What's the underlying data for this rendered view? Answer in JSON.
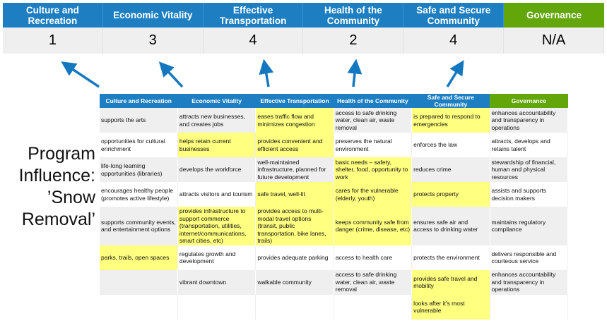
{
  "banner": {
    "categories": [
      {
        "label": "Culture and Recreation",
        "score": "1"
      },
      {
        "label": "Economic Vitality",
        "score": "3"
      },
      {
        "label": "Effective Transportation",
        "score": "4"
      },
      {
        "label": "Health of the Community",
        "score": "2"
      },
      {
        "label": "Safe and Secure Community",
        "score": "4"
      },
      {
        "label": "Governance",
        "score": "N/A"
      }
    ]
  },
  "side_label": "Program Influence: ’Snow Removal’",
  "colors": {
    "header_blue": "#1d7fc2",
    "governance_green": "#62a60a",
    "highlight_yellow": "#ffff80",
    "row_grey": "#efefef",
    "arrow_blue": "#1478c0"
  },
  "table": {
    "headers": [
      "Culture and Recreation",
      "Economic Vitality",
      "Effective Transportation",
      "Health of the Community",
      "Safe and Secure Community",
      "Governance"
    ],
    "rows": [
      [
        {
          "t": "supports the arts"
        },
        {
          "t": "attracts new businesses, and creates jobs"
        },
        {
          "t": "eases traffic flow and minimizes congestion",
          "hl": true
        },
        {
          "t": "access to safe drinking water, clean air, waste removal"
        },
        {
          "t": "is prepared to respond to emergencies",
          "hl": true
        },
        {
          "t": "enhances accountability and transparency in operations"
        }
      ],
      [
        {
          "t": "opportunities for cultural enrichment"
        },
        {
          "t": "helps retain current businesses",
          "hl": true
        },
        {
          "t": "provides convenient and efficient access",
          "hl": true
        },
        {
          "t": "preserves the natural environment"
        },
        {
          "t": "enforces the law"
        },
        {
          "t": "attracts, develops and retains talent"
        }
      ],
      [
        {
          "t": "life-long learning opportunities (libraries)"
        },
        {
          "t": "develops the workforce"
        },
        {
          "t": "well-maintained infrastructure, planned for future development"
        },
        {
          "t": "basic needs – safety, shelter, food, opportunity to work",
          "hl": true
        },
        {
          "t": "reduces crime"
        },
        {
          "t": "stewardship of financial, human and physical resources"
        }
      ],
      [
        {
          "t": "encourages healthy people (promotes active lifestyle)"
        },
        {
          "t": "attracts visitors and tourism"
        },
        {
          "t": "safe travel, well-lit",
          "hl": true
        },
        {
          "t": "cares for the vulnerable (elderly, youth)",
          "hl": true
        },
        {
          "t": "protects property",
          "hl": true
        },
        {
          "t": "assists and supports decision makers"
        }
      ],
      [
        {
          "t": "supports community events, and entertainment options"
        },
        {
          "t": "provides infrastructure to support commerce (transportation, utilities, internet/communications, smart cities, etc)",
          "hl": true
        },
        {
          "t": "provides access to multi-modal travel options (transit, public transportation, bike lanes, trails)",
          "hl": true
        },
        {
          "t": "keeps community safe from danger (crime, disease, etc)",
          "hl": true
        },
        {
          "t": "ensures safe air and access to drinking water"
        },
        {
          "t": "maintains regulatory compliance"
        }
      ],
      [
        {
          "t": "parks, trails, open spaces",
          "hl": true
        },
        {
          "t": "regulates growth and development"
        },
        {
          "t": "provides adequate parking"
        },
        {
          "t": "access to health care"
        },
        {
          "t": "protects the environment"
        },
        {
          "t": "delivers responsible and courteous service"
        }
      ],
      [
        {
          "t": ""
        },
        {
          "t": "vibrant downtown"
        },
        {
          "t": "walkable community"
        },
        {
          "t": "access to safe drinking water, clean air, waste removal"
        },
        {
          "t": "provides safe travel and mobility",
          "hl": true
        },
        {
          "t": "enhances accountability and transparency in operations"
        }
      ],
      [
        {
          "t": ""
        },
        {
          "t": ""
        },
        {
          "t": ""
        },
        {
          "t": ""
        },
        {
          "t": "looks after it's most vulnerable",
          "hl": true
        },
        {
          "t": ""
        }
      ]
    ]
  }
}
